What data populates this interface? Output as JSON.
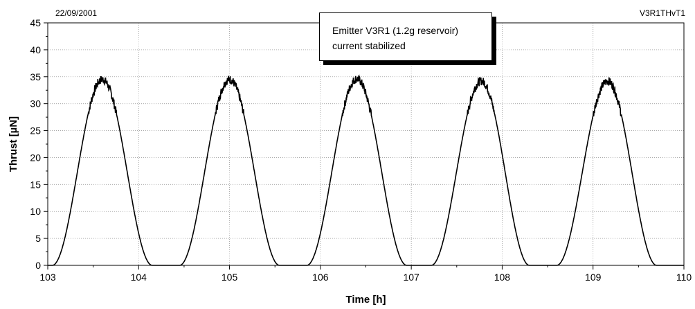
{
  "header": {
    "date": "22/09/2001",
    "code": "V3R1THvT1"
  },
  "annotation": {
    "line1": "Emitter V3R1 (1.2g reservoir)",
    "line2": "current stabilized"
  },
  "chart_data": {
    "type": "line",
    "title": "",
    "xlabel": "Time [h]",
    "ylabel": "Thrust [µN]",
    "xlim": [
      103,
      110
    ],
    "ylim": [
      0,
      45
    ],
    "xticks": [
      103,
      104,
      105,
      106,
      107,
      108,
      109,
      110
    ],
    "yticks": [
      0,
      5,
      10,
      15,
      20,
      25,
      30,
      35,
      40,
      45
    ],
    "grid": true,
    "line_color": "#000000",
    "series": [
      {
        "values_description_free": true,
        "pulses": [
          {
            "start": 103.05,
            "peak_time": 103.6,
            "end": 104.15,
            "peak": 34.5
          },
          {
            "start": 104.45,
            "peak_time": 105.0,
            "end": 105.55,
            "peak": 34.5
          },
          {
            "start": 105.85,
            "peak_time": 106.4,
            "end": 106.95,
            "peak": 34.6
          },
          {
            "start": 107.22,
            "peak_time": 107.77,
            "end": 108.3,
            "peak": 34.2
          },
          {
            "start": 108.6,
            "peak_time": 109.16,
            "end": 109.7,
            "peak": 34.2
          }
        ],
        "baseline": 0
      }
    ]
  }
}
